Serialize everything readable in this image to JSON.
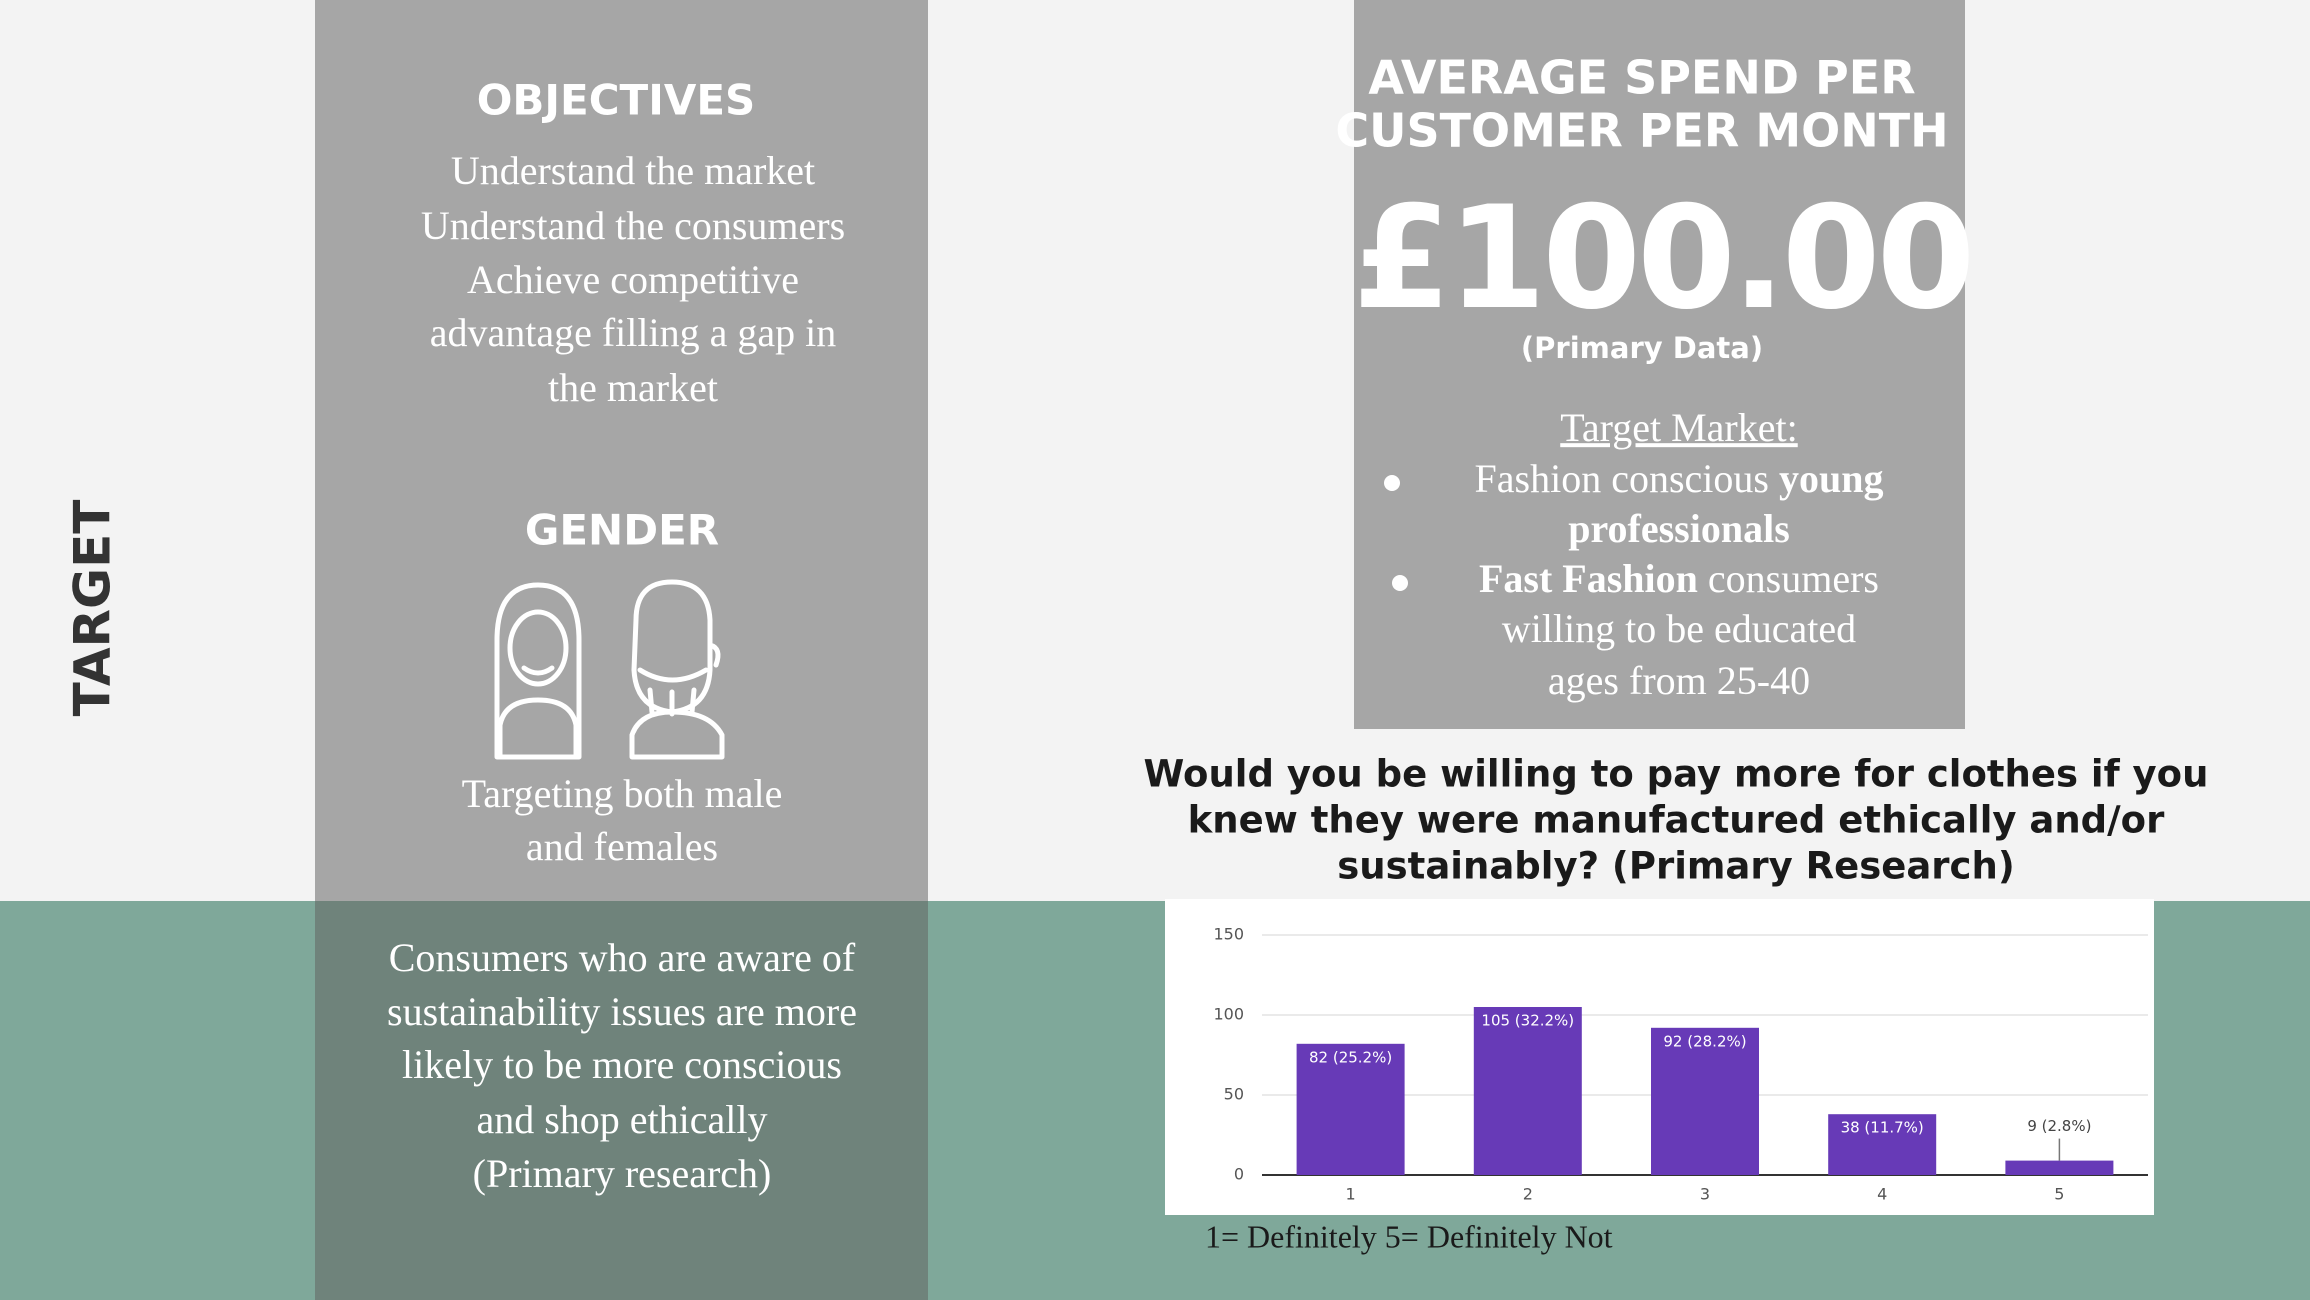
{
  "target": "TARGET",
  "objectives": {
    "title": "OBJECTIVES",
    "lines": [
      "Understand the market",
      "Understand the consumers",
      "Achieve competitive",
      "advantage filling a gap in",
      "the market"
    ]
  },
  "gender": {
    "title": "GENDER",
    "lines": [
      "Targeting both male",
      "and females"
    ]
  },
  "insight": {
    "lines": [
      "Consumers who are aware of",
      "sustainability issues are more",
      "likely to be more conscious",
      "and shop ethically",
      "(Primary research)"
    ]
  },
  "spend": {
    "title_lines": [
      "AVERAGE SPEND PER",
      "CUSTOMER PER MONTH"
    ],
    "amount": "£100.00",
    "source": "(Primary Data)"
  },
  "target_market": {
    "title": "Target Market:",
    "bullets": [
      [
        [
          {
            "text": "Fashion conscious ",
            "bold": false
          },
          {
            "text": "young",
            "bold": true
          }
        ],
        [
          {
            "text": "professionals",
            "bold": true
          }
        ]
      ],
      [
        [
          {
            "text": "Fast Fashion",
            "bold": true
          },
          {
            "text": " consumers",
            "bold": false
          }
        ],
        [
          {
            "text": "willing to be educated",
            "bold": false
          }
        ],
        [
          {
            "text": "ages from 25-40",
            "bold": false
          }
        ]
      ]
    ]
  },
  "question": {
    "lines": [
      "Would you be willing to pay more for clothes if you",
      "knew they were manufactured ethically and/or",
      "sustainably? (Primary Research)"
    ]
  },
  "footnote": "1= Definitely  5= Definitely Not",
  "chart_data": {
    "type": "bar",
    "categories": [
      "1",
      "2",
      "3",
      "4",
      "5"
    ],
    "values": [
      82,
      105,
      92,
      38,
      9
    ],
    "value_labels": [
      "82 (25.2%)",
      "105 (32.2%)",
      "92 (28.2%)",
      "38 (11.7%)",
      "9 (2.8%)"
    ],
    "color": "#673ab7",
    "ylim": [
      0,
      150
    ],
    "yticks": [
      0,
      50,
      100,
      150
    ],
    "grid": true
  }
}
